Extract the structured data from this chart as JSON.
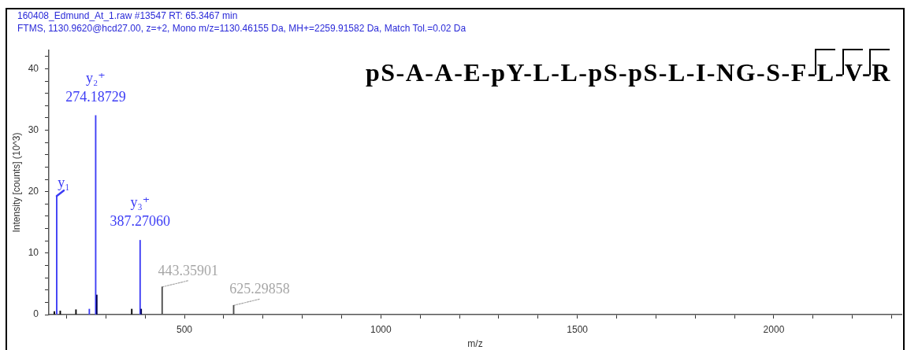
{
  "chart_data": {
    "type": "bar",
    "title": "160408_Edmund_At_1.raw #13547 RT: 65.3467 min",
    "subtitle": "FTMS, 1130.9620@hcd27.00, z=+2, Mono m/z=1130.46155 Da, MH+=2259.91582 Da, Match Tol.=0.02 Da",
    "xlabel": "m/z",
    "ylabel": "Intensity [counts] (10^3)",
    "x": [
      169,
      175,
      184,
      224,
      258,
      274.18729,
      277,
      366,
      387.2706,
      390,
      443.35901,
      625.29858
    ],
    "values": [
      0.5,
      19.3,
      0.6,
      0.8,
      0.9,
      32.4,
      3.2,
      0.9,
      12.1,
      0.9,
      4.5,
      1.5
    ],
    "colors": [
      "#000000",
      "#3c3cf5",
      "#000000",
      "#000000",
      "#3c3cf5",
      "#3c3cf5",
      "#000050",
      "#000000",
      "#3c3cf5",
      "#000050",
      "#4d4d4d",
      "#4d4d4d"
    ],
    "xlim": [
      155,
      2325
    ],
    "ylim": [
      0,
      43
    ],
    "xticks": [
      {
        "value": 200,
        "label": null
      },
      {
        "value": 300,
        "label": null
      },
      {
        "value": 400,
        "label": null
      },
      500,
      {
        "value": 600,
        "label": null
      },
      {
        "value": 700,
        "label": null
      },
      {
        "value": 800,
        "label": null
      },
      {
        "value": 900,
        "label": null
      },
      1000,
      {
        "value": 1100,
        "label": null
      },
      {
        "value": 1200,
        "label": null
      },
      {
        "value": 1300,
        "label": null
      },
      {
        "value": 1400,
        "label": null
      },
      1500,
      {
        "value": 1600,
        "label": null
      },
      {
        "value": 1700,
        "label": null
      },
      {
        "value": 1800,
        "label": null
      },
      {
        "value": 1900,
        "label": null
      },
      2000,
      {
        "value": 2100,
        "label": null
      },
      {
        "value": 2200,
        "label": null
      },
      {
        "value": 2300,
        "label": null
      }
    ],
    "yticks": [
      0,
      {
        "value": 2,
        "label": null
      },
      {
        "value": 4,
        "label": null
      },
      {
        "value": 6,
        "label": null
      },
      {
        "value": 8,
        "label": null
      },
      10,
      {
        "value": 12,
        "label": null
      },
      {
        "value": 14,
        "label": null
      },
      {
        "value": 16,
        "label": null
      },
      {
        "value": 18,
        "label": null
      },
      20,
      {
        "value": 22,
        "label": null
      },
      {
        "value": 24,
        "label": null
      },
      {
        "value": 26,
        "label": null
      },
      {
        "value": 28,
        "label": null
      },
      30,
      {
        "value": 32,
        "label": null
      },
      {
        "value": 34,
        "label": null
      },
      {
        "value": 36,
        "label": null
      },
      {
        "value": 38,
        "label": null
      },
      40,
      {
        "value": 42,
        "label": null
      }
    ],
    "annotations": [
      "pS-A-A-E-pY-L-L-pS-pS-L-I-NG-S-F-L-V-R",
      {
        "text": "y₁",
        "x": 175,
        "y": 19.3
      },
      {
        "text": "y₂⁺\n274.18729",
        "x": 274.18729,
        "y": 32.4
      },
      {
        "text": "y₃⁺\n387.27060",
        "x": 387.2706,
        "y": 12.1
      },
      {
        "text": "443.35901",
        "x": 443.35901,
        "y": 4.5
      },
      {
        "text": "625.29858",
        "x": 625.29858,
        "y": 1.5
      }
    ]
  }
}
